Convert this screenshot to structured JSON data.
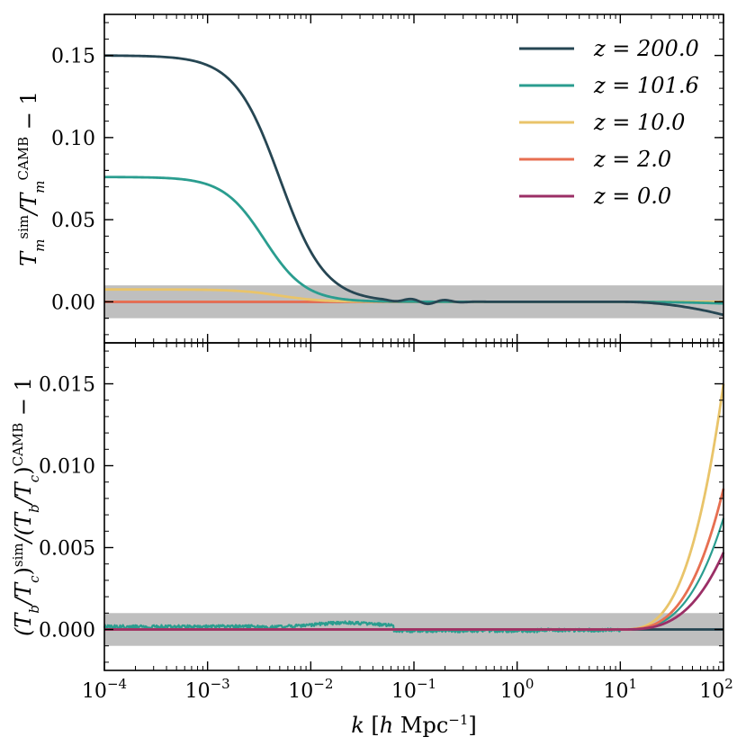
{
  "chart_data": [
    {
      "type": "line",
      "panel": "top",
      "ylabel": "T_m^sim / T_m^CAMB − 1",
      "ylabel_parts": [
        "T",
        "m",
        "sim",
        "/T",
        "m",
        "CAMB",
        " − 1"
      ],
      "xscale": "log",
      "xlim": [
        0.0001,
        100
      ],
      "ylim": [
        -0.025,
        0.175
      ],
      "yticks": [
        0.0,
        0.05,
        0.1,
        0.15
      ],
      "ytick_labels": [
        "0.00",
        "0.05",
        "0.10",
        "0.15"
      ],
      "band": [
        -0.01,
        0.01
      ],
      "band_color": "#bfbfbf",
      "legend_position": "top-right",
      "series": [
        {
          "name": "z = 200.0",
          "legend_text": "z = 200.0",
          "color": "#264653",
          "profile": "sigmoid",
          "plateau": 0.15,
          "center_log10": -2.3,
          "width": 0.22,
          "tail": -0.008,
          "noise": 0.0
        },
        {
          "name": "z = 101.6",
          "legend_text": "z = 101.6",
          "color": "#2a9d8f",
          "profile": "sigmoid",
          "plateau": 0.076,
          "center_log10": -2.45,
          "width": 0.2,
          "tail": -0.001,
          "noise": 0.0
        },
        {
          "name": "z = 10.0",
          "legend_text": "z = 10.0",
          "color": "#e9c46a",
          "profile": "sigmoid",
          "plateau": 0.0075,
          "center_log10": -2.3,
          "width": 0.2,
          "tail": 0.0,
          "noise": 0.0
        },
        {
          "name": "z = 2.0",
          "legend_text": "z = 2.0",
          "color": "#e76f51",
          "profile": "flat",
          "plateau": 0.0,
          "tail": 0.0,
          "noise": 0.0
        },
        {
          "name": "z = 0.0",
          "legend_text": "z = 0.0",
          "color": "#9b2f66",
          "profile": "flat",
          "plateau": 0.0,
          "tail": 0.0,
          "noise": 0.0
        }
      ]
    },
    {
      "type": "line",
      "panel": "bottom",
      "ylabel": "(T_b/T_c)^sim / (T_b/T_c)^CAMB − 1",
      "ylabel_parts": [
        "(T",
        "b",
        "/T",
        "c",
        ")",
        "sim",
        "/(T",
        "b",
        "/T",
        "c",
        ")",
        "CAMB",
        " − 1"
      ],
      "xlabel_parts": [
        "k",
        " [",
        "h",
        " Mpc",
        "−1",
        "]"
      ],
      "xlabel": "k [h Mpc^−1]",
      "xscale": "log",
      "xlim": [
        0.0001,
        100
      ],
      "xticks": [
        0.0001,
        0.001,
        0.01,
        0.1,
        1,
        10,
        100
      ],
      "xtick_labels": [
        {
          "base": "10",
          "exp": "−4"
        },
        {
          "base": "10",
          "exp": "−3"
        },
        {
          "base": "10",
          "exp": "−2"
        },
        {
          "base": "10",
          "exp": "−1"
        },
        {
          "base": "10",
          "exp": "0"
        },
        {
          "base": "10",
          "exp": "1"
        },
        {
          "base": "10",
          "exp": "2"
        }
      ],
      "ylim": [
        -0.0025,
        0.0175
      ],
      "yticks": [
        0.0,
        0.005,
        0.01,
        0.015
      ],
      "ytick_labels": [
        "0.000",
        "0.005",
        "0.010",
        "0.015"
      ],
      "band": [
        -0.001,
        0.001
      ],
      "band_color": "#bfbfbf",
      "series": [
        {
          "name": "z = 200.0",
          "color": "#264653",
          "rise_at_kmax": 0.0,
          "rise_start_log10": 1.0,
          "noise": 0.0
        },
        {
          "name": "z = 101.6",
          "color": "#2a9d8f",
          "rise_at_kmax": 0.0068,
          "rise_start_log10": 1.0,
          "noise": 0.00012
        },
        {
          "name": "z = 10.0",
          "color": "#e9c46a",
          "rise_at_kmax": 0.015,
          "rise_start_log10": 1.0,
          "noise": 0.0
        },
        {
          "name": "z = 2.0",
          "color": "#e76f51",
          "rise_at_kmax": 0.0086,
          "rise_start_log10": 1.0,
          "noise": 0.0
        },
        {
          "name": "z = 0.0",
          "color": "#9b2f66",
          "rise_at_kmax": 0.0047,
          "rise_start_log10": 1.0,
          "noise": 0.0
        }
      ]
    }
  ]
}
